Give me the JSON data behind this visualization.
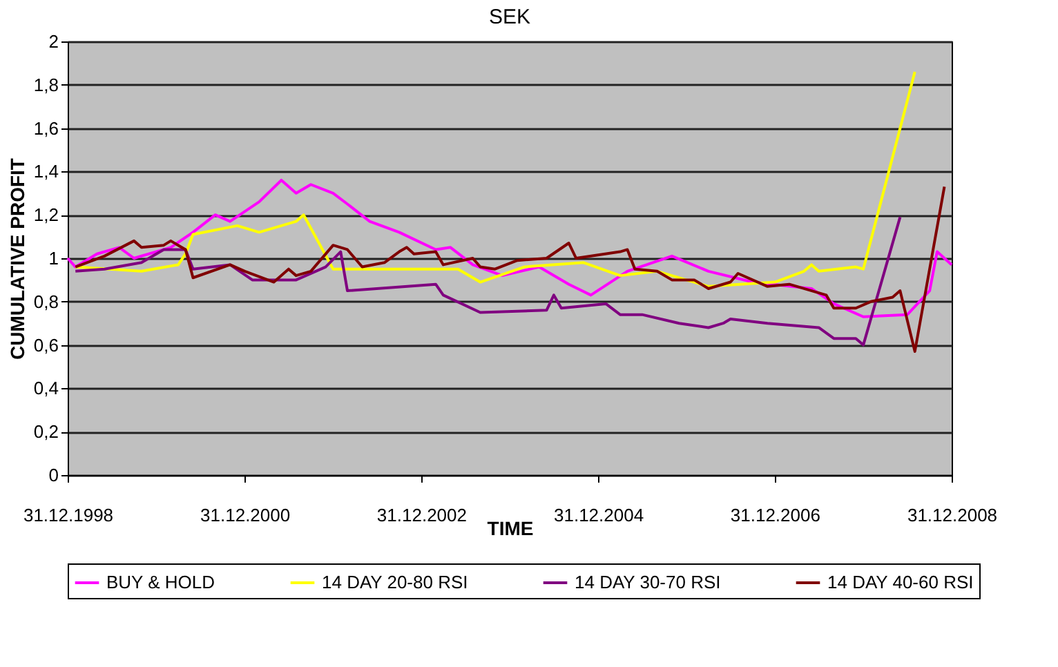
{
  "chart_data": {
    "type": "line",
    "title": "SEK",
    "xlabel": "TIME",
    "ylabel": "CUMULATIVE PROFIT",
    "xlim": [
      "1998-12-31",
      "2008-12-31"
    ],
    "xticks": [
      {
        "value": "1998-12-31",
        "label": "31.12.1998"
      },
      {
        "value": "2000-12-31",
        "label": "31.12.2000"
      },
      {
        "value": "2002-12-31",
        "label": "31.12.2002"
      },
      {
        "value": "2004-12-31",
        "label": "31.12.2004"
      },
      {
        "value": "2006-12-31",
        "label": "31.12.2006"
      },
      {
        "value": "2008-12-31",
        "label": "31.12.2008"
      }
    ],
    "ylim": [
      0,
      2
    ],
    "yticks": [
      0,
      {
        "value": 0.2,
        "label": "0,2"
      },
      {
        "value": 0.4,
        "label": "0,4"
      },
      {
        "value": 0.6,
        "label": "0,6"
      },
      {
        "value": 0.8,
        "label": "0,8"
      },
      1,
      {
        "value": 1.2,
        "label": "1,2"
      },
      {
        "value": 1.4,
        "label": "1,4"
      },
      {
        "value": 1.6,
        "label": "1,6"
      },
      {
        "value": 1.8,
        "label": "1,8"
      },
      2
    ],
    "grid": "y",
    "legend": "bottom",
    "series": [
      {
        "name": "BUY & HOLD",
        "color": "#ff00ff",
        "x": [
          "1998-12-31",
          "1999-02",
          "1999-05",
          "1999-08",
          "1999-10",
          "2000-03",
          "2000-06",
          "2000-09",
          "2000-11",
          "2001-03",
          "2001-06",
          "2001-08",
          "2001-10",
          "2002-01",
          "2002-03",
          "2002-06",
          "2002-10",
          "2003-03",
          "2003-05",
          "2003-08",
          "2003-12",
          "2004-05",
          "2004-09",
          "2004-12",
          "2005-05",
          "2005-11",
          "2006-04",
          "2006-10",
          "2007-06",
          "2007-09",
          "2008-01",
          "2008-07",
          "2008-10",
          "2008-11",
          "2008-12-31"
        ],
        "values": [
          1.0,
          0.96,
          1.02,
          1.05,
          1.0,
          1.05,
          1.12,
          1.2,
          1.17,
          1.26,
          1.36,
          1.3,
          1.34,
          1.3,
          1.25,
          1.17,
          1.12,
          1.04,
          1.05,
          0.97,
          0.92,
          0.96,
          0.88,
          0.83,
          0.94,
          1.01,
          0.94,
          0.89,
          0.86,
          0.79,
          0.73,
          0.74,
          0.85,
          1.03,
          0.97
        ]
      },
      {
        "name": "14 DAY 20-80 RSI",
        "color": "#ffff00",
        "x": [
          "1999-02",
          "1999-11",
          "2000-04",
          "2000-05",
          "2000-06",
          "2000-12",
          "2001-03",
          "2001-08",
          "2001-09",
          "2002-01",
          "2003-06",
          "2003-09",
          "2004-03",
          "2004-11",
          "2005-04",
          "2005-09",
          "2006-04",
          "2007-01",
          "2007-05",
          "2007-06",
          "2007-07",
          "2007-12",
          "2008-01",
          "2008-08"
        ],
        "values": [
          0.96,
          0.94,
          0.97,
          1.02,
          1.11,
          1.15,
          1.12,
          1.17,
          1.2,
          0.95,
          0.95,
          0.89,
          0.96,
          0.98,
          0.92,
          0.94,
          0.87,
          0.89,
          0.94,
          0.97,
          0.94,
          0.96,
          0.95,
          1.86
        ]
      },
      {
        "name": "14 DAY 30-70 RSI",
        "color": "#800080",
        "x": [
          "1999-02",
          "1999-06",
          "1999-11",
          "2000-02",
          "2000-05",
          "2000-06",
          "2000-11",
          "2001-02",
          "2001-08",
          "2001-12",
          "2002-02",
          "2002-03",
          "2003-03",
          "2003-04",
          "2003-09",
          "2004-06",
          "2004-07",
          "2004-08",
          "2005-02",
          "2005-04",
          "2005-07",
          "2005-12",
          "2006-04",
          "2006-06",
          "2006-07",
          "2006-12",
          "2007-07",
          "2007-09",
          "2007-12",
          "2008-01",
          "2008-06"
        ],
        "values": [
          0.94,
          0.95,
          0.98,
          1.04,
          1.04,
          0.95,
          0.97,
          0.9,
          0.9,
          0.96,
          1.03,
          0.85,
          0.88,
          0.83,
          0.75,
          0.76,
          0.83,
          0.77,
          0.79,
          0.74,
          0.74,
          0.7,
          0.68,
          0.7,
          0.72,
          0.7,
          0.68,
          0.63,
          0.63,
          0.6,
          1.19
        ]
      },
      {
        "name": "14 DAY 40-60 RSI",
        "color": "#800000",
        "x": [
          "1999-02",
          "1999-06",
          "1999-10",
          "1999-11",
          "2000-02",
          "2000-03",
          "2000-05",
          "2000-06",
          "2000-11",
          "2001-01",
          "2001-05",
          "2001-07",
          "2001-08",
          "2001-10",
          "2002-01",
          "2002-03",
          "2002-05",
          "2002-08",
          "2002-10",
          "2002-11",
          "2002-12",
          "2003-03",
          "2003-04",
          "2003-08",
          "2003-09",
          "2003-11",
          "2004-02",
          "2004-06",
          "2004-09",
          "2004-10",
          "2005-04",
          "2005-05",
          "2005-06",
          "2005-09",
          "2005-11",
          "2006-02",
          "2006-04",
          "2006-07",
          "2006-08",
          "2006-12",
          "2007-03",
          "2007-08",
          "2007-09",
          "2007-12",
          "2008-02",
          "2008-05",
          "2008-06",
          "2008-08",
          "2008-12"
        ],
        "values": [
          0.96,
          1.01,
          1.08,
          1.05,
          1.06,
          1.08,
          1.04,
          0.91,
          0.97,
          0.94,
          0.89,
          0.95,
          0.92,
          0.94,
          1.06,
          1.04,
          0.96,
          0.98,
          1.03,
          1.05,
          1.02,
          1.03,
          0.97,
          1.0,
          0.96,
          0.95,
          0.99,
          1.0,
          1.07,
          1.0,
          1.03,
          1.04,
          0.95,
          0.94,
          0.9,
          0.9,
          0.86,
          0.89,
          0.93,
          0.87,
          0.88,
          0.83,
          0.77,
          0.77,
          0.8,
          0.82,
          0.85,
          0.57,
          1.33
        ]
      }
    ]
  }
}
